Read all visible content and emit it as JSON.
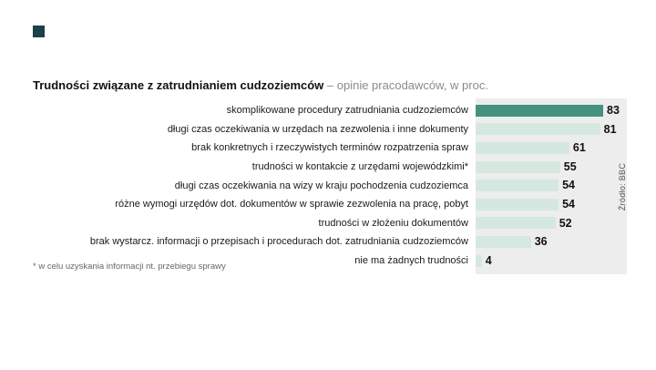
{
  "brand": {
    "corner_color": "#1d4049"
  },
  "header": {
    "title_bold": "Trudności związane z zatrudnianiem cudzoziemców",
    "title_rest": "– opinie pracodawców, w proc."
  },
  "chart_data": {
    "type": "bar",
    "orientation": "horizontal",
    "title": "Trudności związane z zatrudnianiem cudzoziemców",
    "subtitle": "opinie pracodawców, w proc.",
    "categories": [
      "skomplikowane procedury zatrudniania cudzoziemców",
      "długi czas oczekiwania w urzędach na zezwolenia i inne dokumenty",
      "brak konkretnych i rzeczywistych terminów rozpatrzenia spraw",
      "trudności w kontakcie z urzędami wojewódzkimi*",
      "długi czas oczekiwania na wizy w kraju pochodzenia cudzoziemca",
      "różne wymogi urzędów dot. dokumentów w sprawie zezwolenia na pracę, pobyt",
      "trudności w złożeniu dokumentów",
      "brak wystarcz. informacji o przepisach i procedurach dot. zatrudniania cudzoziemców",
      "nie ma żadnych trudności"
    ],
    "values": [
      83,
      81,
      61,
      55,
      54,
      54,
      52,
      36,
      4
    ],
    "value_max_ref": 83,
    "highlight_index": 0,
    "xlim": [
      0,
      100
    ],
    "grid": false,
    "legend": "none",
    "colors": {
      "highlight_bar": "#46917e",
      "normal_bar": "#d5e8df",
      "panel_background": "#ededed",
      "value_text": "#111111"
    }
  },
  "footnote": "* w celu uzyskania informacji nt. przebiegu sprawy",
  "source": "Źródło: BBC"
}
